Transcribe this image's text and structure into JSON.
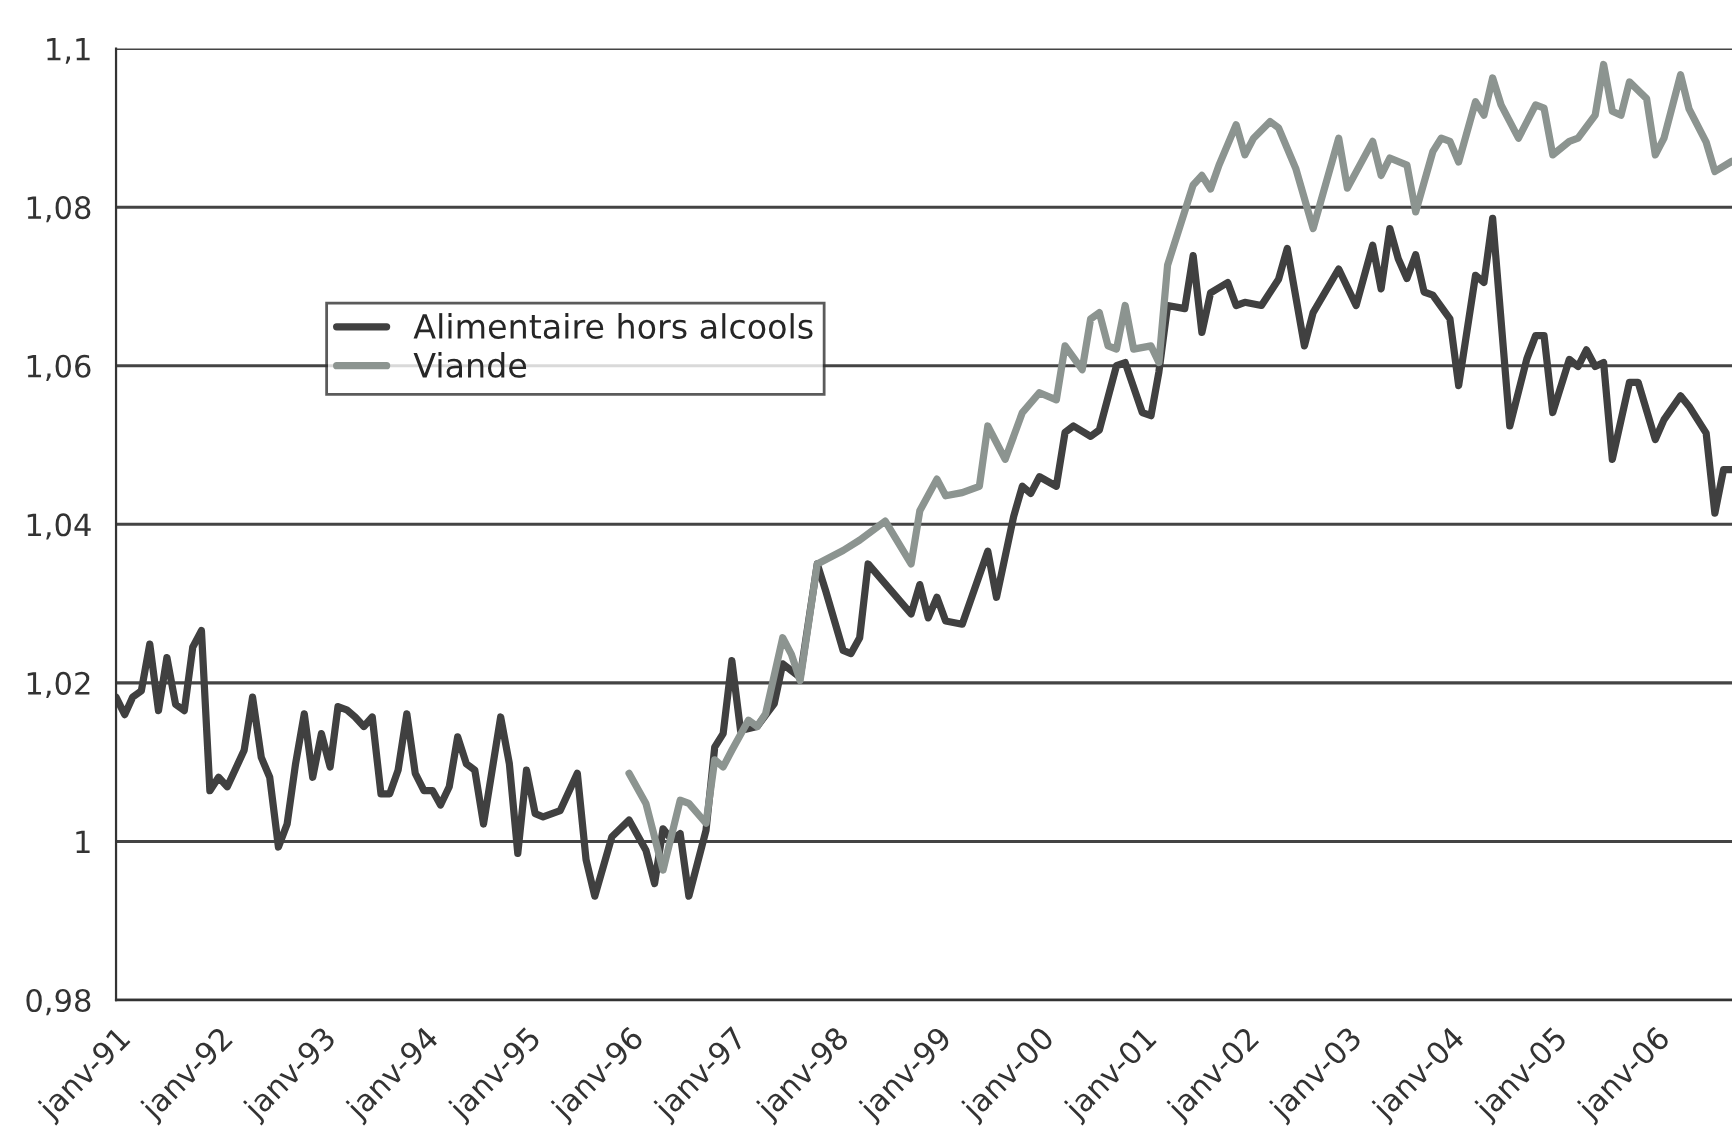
{
  "chart_data": {
    "type": "line",
    "xlim": [
      "1991-01",
      "2006-10"
    ],
    "ylim": [
      0.98,
      1.1
    ],
    "xticks": [
      {
        "value": "1991-01",
        "label": "janv-91"
      },
      {
        "value": "1992-01",
        "label": "janv-92"
      },
      {
        "value": "1993-01",
        "label": "janv-93"
      },
      {
        "value": "1994-01",
        "label": "janv-94"
      },
      {
        "value": "1995-01",
        "label": "janv-95"
      },
      {
        "value": "1996-01",
        "label": "janv-96"
      },
      {
        "value": "1997-01",
        "label": "janv-97"
      },
      {
        "value": "1998-01",
        "label": "janv-98"
      },
      {
        "value": "1999-01",
        "label": "janv-99"
      },
      {
        "value": "2000-01",
        "label": "janv-00"
      },
      {
        "value": "2001-01",
        "label": "janv-01"
      },
      {
        "value": "2002-01",
        "label": "janv-02"
      },
      {
        "value": "2003-01",
        "label": "janv-03"
      },
      {
        "value": "2004-01",
        "label": "janv-04"
      },
      {
        "value": "2005-01",
        "label": "janv-05"
      },
      {
        "value": "2006-01",
        "label": "janv-06"
      }
    ],
    "yticks": [
      {
        "value": 0.98,
        "label": "0,98"
      },
      1,
      {
        "value": 1.02,
        "label": "1,02"
      },
      {
        "value": 1.04,
        "label": "1,04"
      },
      {
        "value": 1.06,
        "label": "1,06"
      },
      {
        "value": 1.08,
        "label": "1,08"
      },
      {
        "value": 1.1,
        "label": "1,1"
      }
    ],
    "grid": "y",
    "legend": "upper left",
    "marker": "none",
    "line_style": "solid",
    "series": [
      {
        "name": "Alimentaire hors alcools",
        "color": "#404040",
        "x": [
          "1991-01",
          "1991-02",
          "1991-03",
          "1991-04",
          "1991-05",
          "1991-06",
          "1991-07",
          "1991-08",
          "1991-09",
          "1991-10",
          "1991-11",
          "1991-12",
          "1992-01",
          "1992-02",
          "1992-04",
          "1992-05",
          "1992-06",
          "1992-07",
          "1992-08",
          "1992-09",
          "1992-10",
          "1992-11",
          "1992-12",
          "1993-01",
          "1993-02",
          "1993-03",
          "1993-04",
          "1993-05",
          "1993-06",
          "1993-07",
          "1993-08",
          "1993-09",
          "1993-10",
          "1993-11",
          "1993-12",
          "1994-01",
          "1994-02",
          "1994-03",
          "1994-04",
          "1994-05",
          "1994-06",
          "1994-07",
          "1994-08",
          "1994-10",
          "1994-11",
          "1994-12",
          "1995-01",
          "1995-02",
          "1995-03",
          "1995-05",
          "1995-07",
          "1995-08",
          "1995-09",
          "1995-11",
          "1996-01",
          "1996-03",
          "1996-04",
          "1996-05",
          "1996-06",
          "1996-07",
          "1996-08",
          "1996-10",
          "1996-11",
          "1996-12",
          "1997-01",
          "1997-02",
          "1997-04",
          "1997-06",
          "1997-07",
          "1997-09",
          "1997-11",
          "1997-12",
          "1998-02",
          "1998-03",
          "1998-04",
          "1998-05",
          "1998-10",
          "1998-11",
          "1998-12",
          "1999-01",
          "1999-02",
          "1999-04",
          "1999-07",
          "1999-08",
          "1999-10",
          "1999-11",
          "1999-12",
          "2000-01",
          "2000-03",
          "2000-04",
          "2000-05",
          "2000-07",
          "2000-08",
          "2000-10",
          "2000-11",
          "2001-01",
          "2001-02",
          "2001-03",
          "2001-04",
          "2001-06",
          "2001-07",
          "2001-08",
          "2001-09",
          "2001-11",
          "2001-12",
          "2002-01",
          "2002-03",
          "2002-05",
          "2002-06",
          "2002-08",
          "2002-09",
          "2002-12",
          "2003-02",
          "2003-04",
          "2003-05",
          "2003-06",
          "2003-07",
          "2003-08",
          "2003-09",
          "2003-10",
          "2003-11",
          "2004-01",
          "2004-02",
          "2004-04",
          "2004-05",
          "2004-06",
          "2004-08",
          "2004-10",
          "2004-11",
          "2004-12",
          "2005-01",
          "2005-03",
          "2005-04",
          "2005-05",
          "2005-06",
          "2005-07",
          "2005-08",
          "2005-10",
          "2005-11",
          "2006-01",
          "2006-02",
          "2006-04",
          "2006-05",
          "2006-07",
          "2006-08",
          "2006-09",
          "2006-10"
        ],
        "values": [
          1.0182,
          1.016,
          1.0182,
          1.019,
          1.0249,
          1.0165,
          1.0232,
          1.0173,
          1.0165,
          1.0245,
          1.0266,
          1.0064,
          1.0081,
          1.0069,
          1.0115,
          1.0182,
          1.0106,
          1.0081,
          0.9993,
          1.0022,
          1.0098,
          1.0161,
          1.0081,
          1.0136,
          1.0094,
          1.017,
          1.0166,
          1.0157,
          1.0145,
          1.0157,
          1.006,
          1.006,
          1.009,
          1.0161,
          1.0086,
          1.0064,
          1.0064,
          1.0046,
          1.0069,
          1.0132,
          1.0098,
          1.009,
          1.0022,
          1.0157,
          1.0098,
          0.9985,
          1.009,
          1.0035,
          1.0031,
          1.0039,
          1.0086,
          0.9977,
          0.9931,
          1.0006,
          1.0027,
          0.9989,
          0.9947,
          1.0016,
          1.0002,
          1.001,
          0.9931,
          1.0014,
          1.0119,
          1.0136,
          1.0228,
          1.014,
          1.0145,
          1.0174,
          1.0224,
          1.0207,
          1.035,
          1.0316,
          1.0241,
          1.0237,
          1.0257,
          1.035,
          1.0287,
          1.0324,
          1.0282,
          1.0308,
          1.0278,
          1.0274,
          1.0366,
          1.0308,
          1.041,
          1.0448,
          1.0439,
          1.046,
          1.0448,
          1.0516,
          1.0524,
          1.0511,
          1.0519,
          1.06,
          1.0604,
          1.0541,
          1.0537,
          1.0592,
          1.0676,
          1.0672,
          1.0739,
          1.0642,
          1.0692,
          1.0705,
          1.0676,
          1.068,
          1.0676,
          1.0709,
          1.0748,
          1.0625,
          1.0667,
          1.0722,
          1.0676,
          1.0752,
          1.0697,
          1.0773,
          1.0735,
          1.071,
          1.074,
          1.0693,
          1.0689,
          1.0659,
          1.0575,
          1.0714,
          1.0705,
          1.0786,
          1.0524,
          1.0609,
          1.0638,
          1.0638,
          1.0541,
          1.0608,
          1.0599,
          1.062,
          1.0599,
          1.0604,
          1.0482,
          1.0579,
          1.0579,
          1.0507,
          1.0532,
          1.0562,
          1.0549,
          1.0515,
          1.0414,
          1.0469,
          1.0469
        ]
      },
      {
        "name": "Viande",
        "color": "#8c9490",
        "x": [
          "1996-01",
          "1996-03",
          "1996-05",
          "1996-07",
          "1996-08",
          "1996-10",
          "1996-11",
          "1996-12",
          "1997-01",
          "1997-03",
          "1997-04",
          "1997-05",
          "1997-07",
          "1997-08",
          "1997-09",
          "1997-11",
          "1998-02",
          "1998-04",
          "1998-07",
          "1998-10",
          "1998-11",
          "1999-01",
          "1999-02",
          "1999-04",
          "1999-06",
          "1999-07",
          "1999-09",
          "1999-11",
          "2000-01",
          "2000-03",
          "2000-04",
          "2000-06",
          "2000-07",
          "2000-08",
          "2000-09",
          "2000-10",
          "2000-11",
          "2000-12",
          "2001-02",
          "2001-03",
          "2001-04",
          "2001-07",
          "2001-08",
          "2001-09",
          "2001-10",
          "2001-12",
          "2002-01",
          "2002-02",
          "2002-04",
          "2002-05",
          "2002-07",
          "2002-09",
          "2002-12",
          "2003-01",
          "2003-04",
          "2003-05",
          "2003-06",
          "2003-08",
          "2003-09",
          "2003-11",
          "2003-12",
          "2004-01",
          "2004-02",
          "2004-04",
          "2004-05",
          "2004-06",
          "2004-07",
          "2004-09",
          "2004-11",
          "2004-12",
          "2005-01",
          "2005-03",
          "2005-04",
          "2005-06",
          "2005-07",
          "2005-08",
          "2005-09",
          "2005-10",
          "2005-12",
          "2006-01",
          "2006-02",
          "2006-04",
          "2006-05",
          "2006-07",
          "2006-08",
          "2006-10"
        ],
        "values": [
          1.0086,
          1.0048,
          0.9964,
          1.0052,
          1.0048,
          1.0023,
          1.0103,
          1.0094,
          1.0115,
          1.0153,
          1.0145,
          1.0161,
          1.0257,
          1.0236,
          1.0203,
          1.035,
          1.0367,
          1.038,
          1.0404,
          1.035,
          1.0417,
          1.0457,
          1.0436,
          1.044,
          1.0448,
          1.0524,
          1.0482,
          1.0541,
          1.0566,
          1.0557,
          1.0625,
          1.0595,
          1.0659,
          1.0667,
          1.0625,
          1.0621,
          1.0676,
          1.0621,
          1.0625,
          1.0604,
          1.0727,
          1.0828,
          1.084,
          1.0823,
          1.0853,
          1.0904,
          1.0866,
          1.0887,
          1.0908,
          1.09,
          1.0849,
          1.0773,
          1.0887,
          1.0824,
          1.0883,
          1.084,
          1.0862,
          1.0853,
          1.0794,
          1.087,
          1.0887,
          1.0883,
          1.0857,
          1.0933,
          1.0916,
          1.0963,
          1.0929,
          1.0887,
          1.0929,
          1.0925,
          1.0866,
          1.0883,
          1.0887,
          1.0916,
          1.098,
          1.0921,
          1.0916,
          1.0958,
          1.0937,
          1.0866,
          1.0887,
          1.0967,
          1.0924,
          1.0882,
          1.0845,
          1.0858
        ]
      }
    ]
  }
}
